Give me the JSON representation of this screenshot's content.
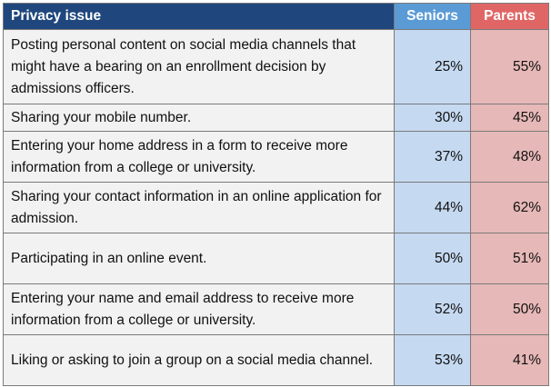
{
  "chart_data": {
    "type": "table",
    "columns": [
      "Privacy issue",
      "Seniors",
      "Parents"
    ],
    "rows": [
      {
        "issue": "Posting personal content on social media channels that might have a bearing on an enrollment decision by admissions  officers.",
        "seniors": "25%",
        "parents": "55%"
      },
      {
        "issue": "Sharing your mobile number.",
        "seniors": "30%",
        "parents": "45%"
      },
      {
        "issue": "Entering your home address in a form to receive more information from a college or university.",
        "seniors": "37%",
        "parents": "48%"
      },
      {
        "issue": "Sharing your contact information in an online application  for admission.",
        "seniors": "44%",
        "parents": "62%"
      },
      {
        "issue": "Participating  in an online event.",
        "seniors": "50%",
        "parents": "51%"
      },
      {
        "issue": "Entering your name and email address to receive more information from a college or university.",
        "seniors": "52%",
        "parents": "50%"
      },
      {
        "issue": "Liking or asking to join a group on a social media channel.",
        "seniors": "53%",
        "parents": "41%"
      }
    ],
    "colors": {
      "header_issue": "#1f477d",
      "header_seniors": "#5b9bd5",
      "header_parents": "#e06666",
      "cell_issue": "#f2f2f2",
      "cell_seniors": "#c5d9f1",
      "cell_parents": "#e6b8b7"
    }
  }
}
